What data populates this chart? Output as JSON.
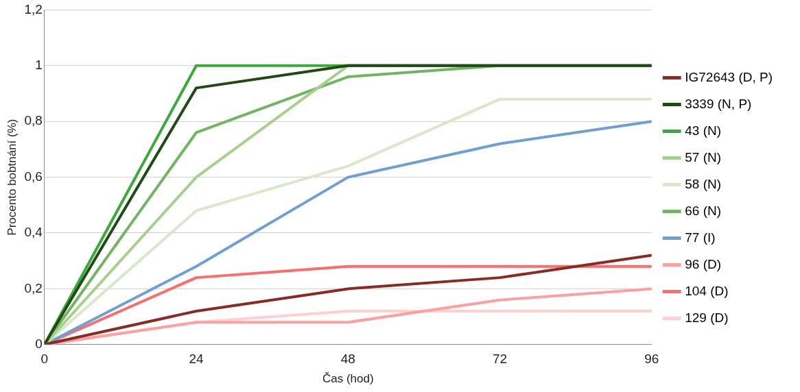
{
  "chart_data": {
    "type": "line",
    "xlabel": "Čas (hod)",
    "ylabel": "Procento bobtnání (%)",
    "x": [
      0,
      24,
      48,
      72,
      96
    ],
    "xlim": [
      0,
      96
    ],
    "xticks": [
      0,
      24,
      48,
      72,
      96
    ],
    "ylim": [
      0,
      1.2
    ],
    "yticks": [
      {
        "value": 0,
        "label": "0"
      },
      {
        "value": 0.2,
        "label": "0,2"
      },
      {
        "value": 0.4,
        "label": "0,4"
      },
      {
        "value": 0.6,
        "label": "0,6"
      },
      {
        "value": 0.8,
        "label": "0,8"
      },
      {
        "value": 1,
        "label": "1"
      },
      {
        "value": 1.2,
        "label": "1,2"
      }
    ],
    "grid": "y",
    "legend": "right",
    "marker": "none",
    "line_style": "solid",
    "series": [
      {
        "name": "IG72643 (D, P)",
        "color": "#8b2a23",
        "values": [
          0,
          0.12,
          0.2,
          0.24,
          0.32
        ]
      },
      {
        "name": "3339 (N, P)",
        "color": "#1e4a14",
        "values": [
          0,
          0.92,
          1,
          1,
          1
        ]
      },
      {
        "name": "43 (N)",
        "color": "#3aaa3a",
        "values": [
          0,
          1,
          1,
          1,
          1
        ]
      },
      {
        "name": "57 (N)",
        "color": "#a8d08d",
        "values": [
          0,
          0.6,
          1,
          1,
          1
        ]
      },
      {
        "name": "58 (N)",
        "color": "#d9e8c8",
        "values": [
          0,
          0.48,
          0.64,
          0.88,
          0.88
        ]
      },
      {
        "name": "66 (N)",
        "color": "#70b55f",
        "values": [
          0,
          0.76,
          0.96,
          1,
          1
        ]
      },
      {
        "name": "77 (I)",
        "color": "#6f9fd4",
        "values": [
          0,
          0.28,
          0.6,
          0.72,
          0.8
        ]
      },
      {
        "name": "96 (D)",
        "color": "#ffa0a0",
        "values": [
          0,
          0.08,
          0.08,
          0.16,
          0.2
        ]
      },
      {
        "name": "104 (D)",
        "color": "#ff6a6a",
        "values": [
          0,
          0.24,
          0.28,
          0.28,
          0.28
        ]
      },
      {
        "name": "129 (D)",
        "color": "#ffd0d0",
        "values": [
          0,
          0.08,
          0.12,
          0.12,
          0.12
        ]
      }
    ]
  }
}
